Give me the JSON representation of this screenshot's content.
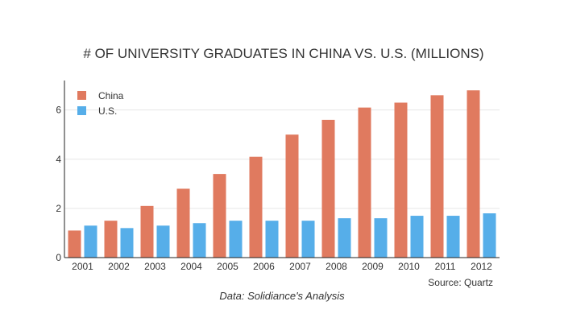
{
  "chart_data": {
    "type": "bar",
    "title": "# OF UNIVERSITY GRADUATES IN CHINA VS. U.S. (MILLIONS)",
    "categories": [
      "2001",
      "2002",
      "2003",
      "2004",
      "2005",
      "2006",
      "2007",
      "2008",
      "2009",
      "2010",
      "2011",
      "2012"
    ],
    "series": [
      {
        "name": "China",
        "color": "#e07a5f",
        "values": [
          1.1,
          1.5,
          2.1,
          2.8,
          3.4,
          4.1,
          5.0,
          5.6,
          6.1,
          6.3,
          6.6,
          6.8
        ]
      },
      {
        "name": "U.S.",
        "color": "#56aee9",
        "values": [
          1.3,
          1.2,
          1.3,
          1.4,
          1.5,
          1.5,
          1.5,
          1.6,
          1.6,
          1.7,
          1.7,
          1.8
        ]
      }
    ],
    "yticks": [
      0,
      2,
      4,
      6
    ],
    "ylim": [
      0,
      7.2
    ],
    "xlabel": "",
    "ylabel": "",
    "grid": true,
    "legend": "top-left",
    "annotations": {
      "source": "Source: Quartz",
      "data_note": "Data: Solidiance's Analysis"
    }
  }
}
